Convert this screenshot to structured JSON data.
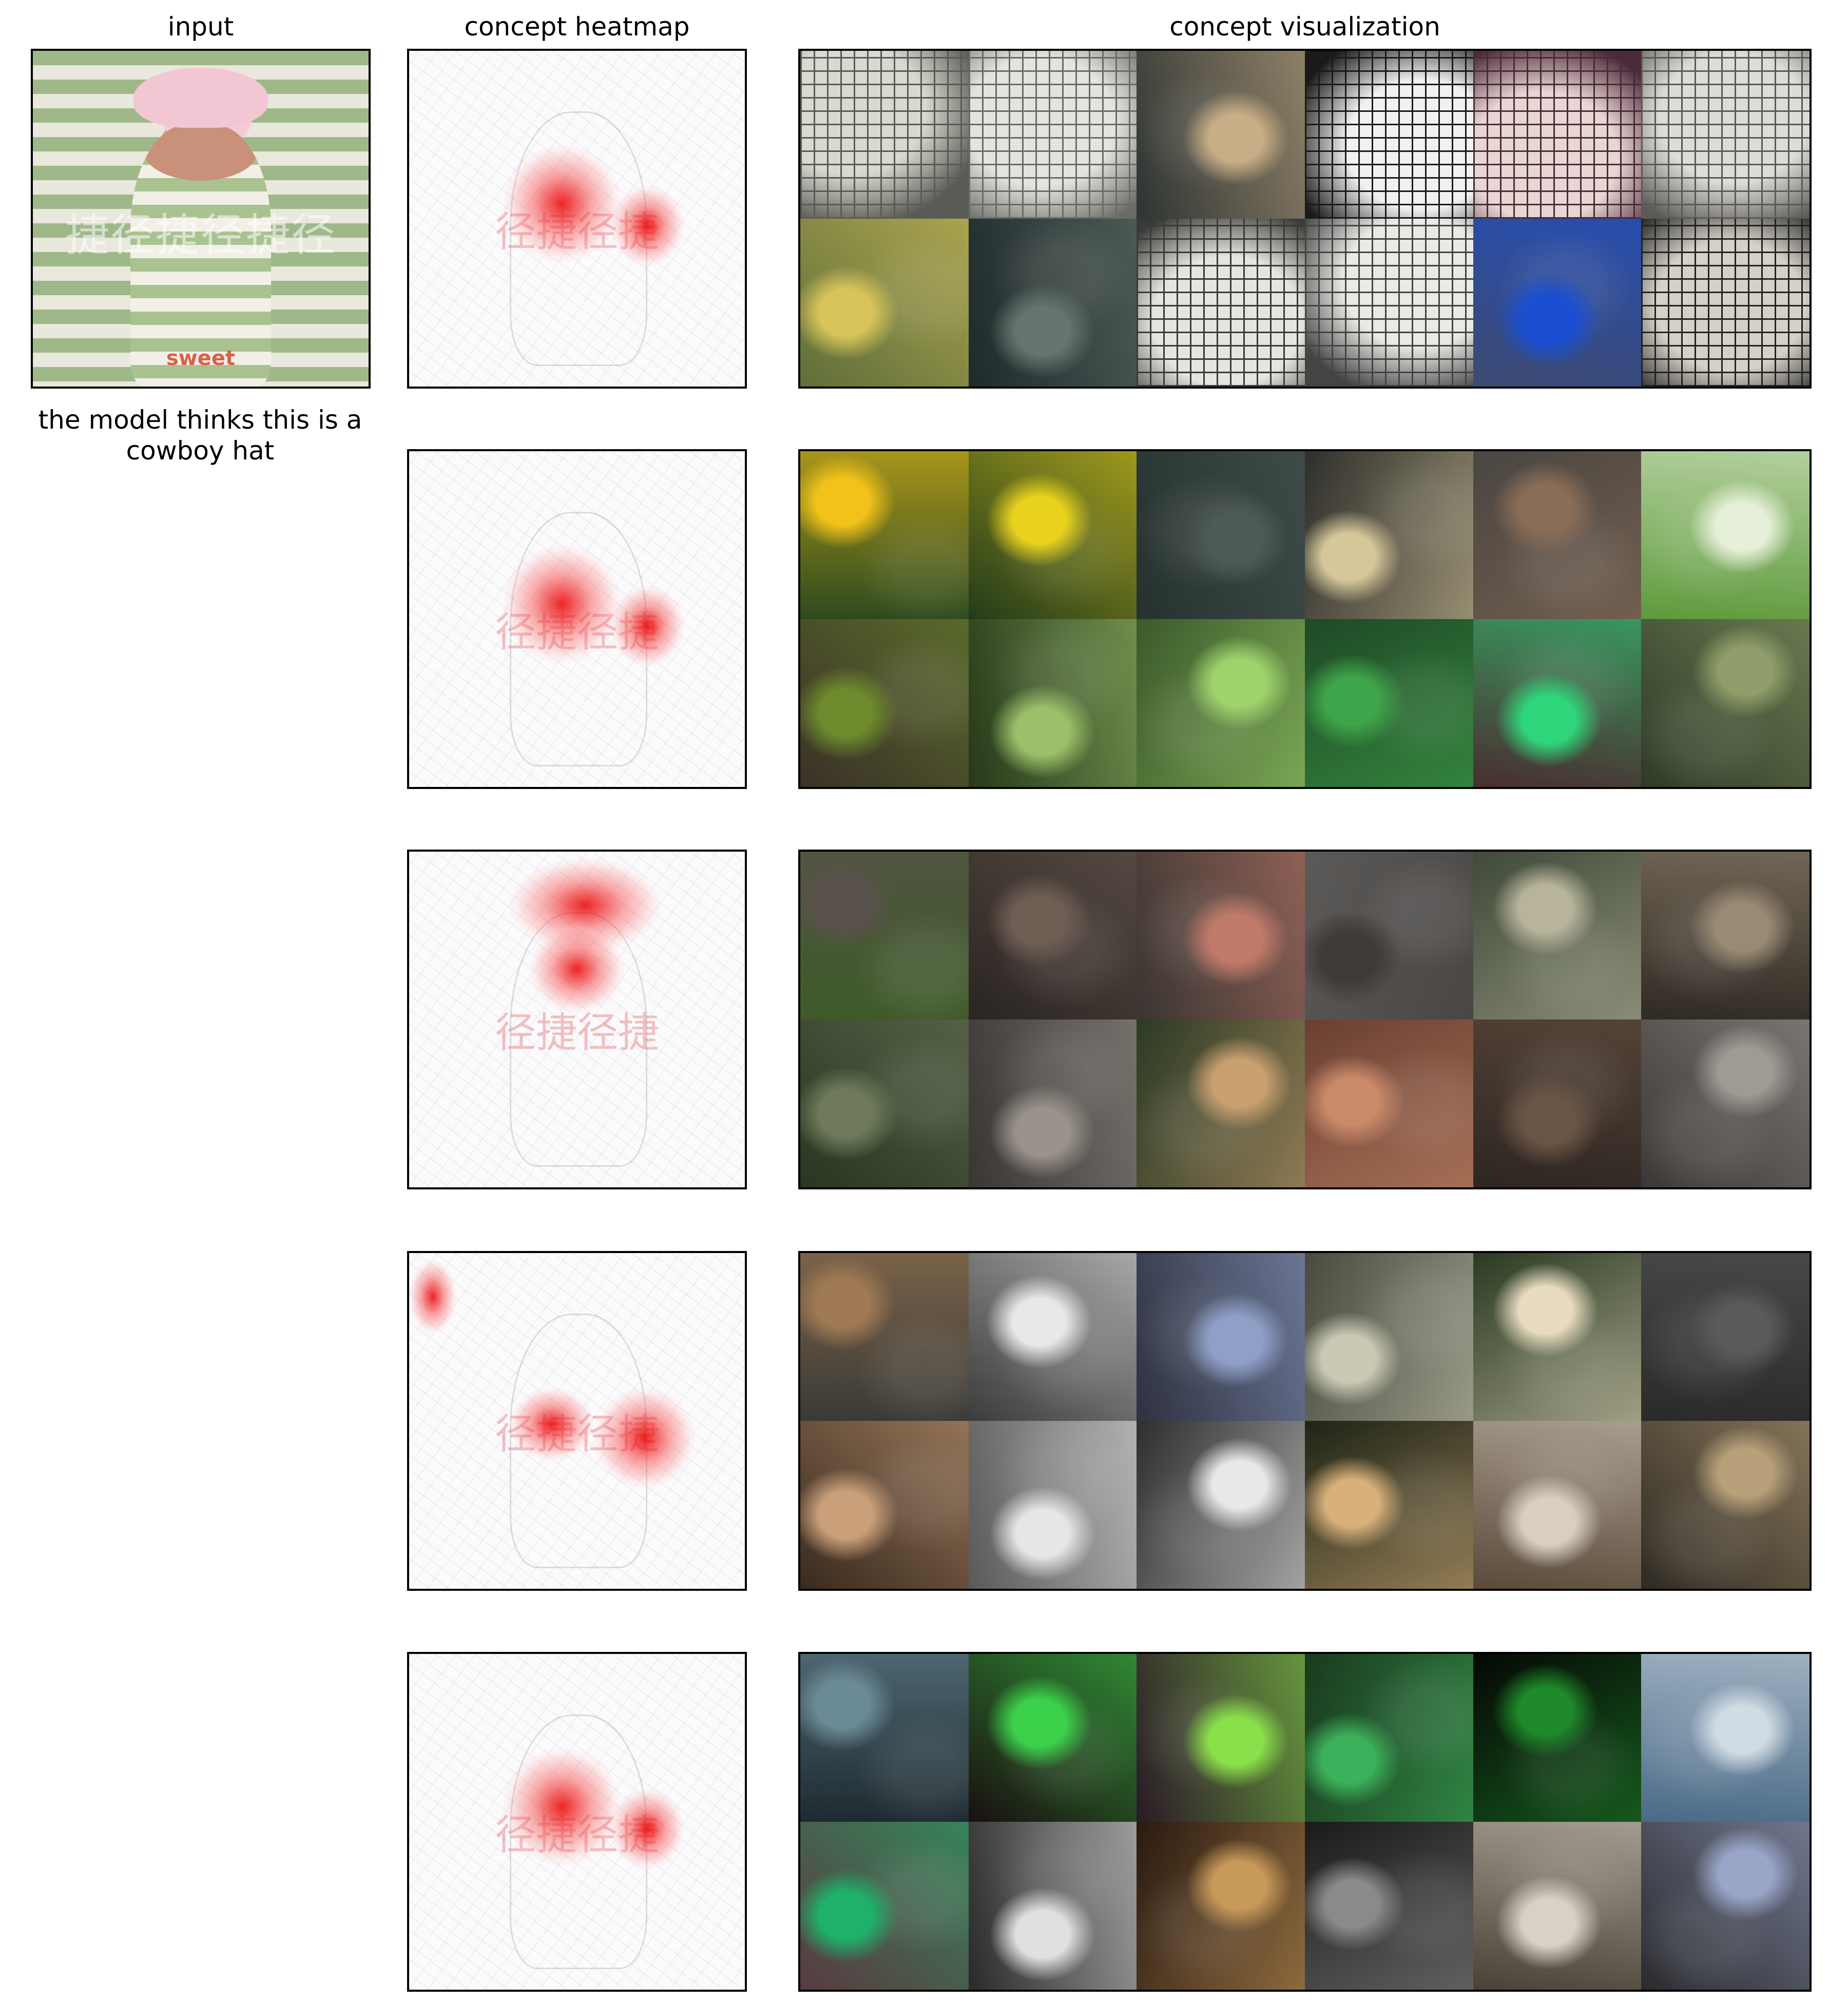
{
  "headers": {
    "input": "input",
    "heatmap": "concept heatmap",
    "visualization": "concept visualization"
  },
  "caption": "the model thinks this is a cowboy hat",
  "input_image": {
    "watermark": "捷径捷径捷径",
    "shirt_text": "sweet"
  },
  "heatmap_watermark": "径捷径捷",
  "concept_rows": [
    {
      "focus": "center",
      "tiles": [
        {
          "type": "crossword",
          "base": "#5b5b55",
          "hi": "#d9d9d2"
        },
        {
          "type": "crossword",
          "base": "#6a6a66",
          "hi": "#e4e4df"
        },
        {
          "type": "photo",
          "base": "#2e3433",
          "hi": "#c8ae86"
        },
        {
          "type": "crossword",
          "base": "#1a1a1a",
          "hi": "#f1f1f1"
        },
        {
          "type": "crossword",
          "base": "#4b2b3a",
          "hi": "#e8d6d2"
        },
        {
          "type": "crossword",
          "base": "#5c5a56",
          "hi": "#dedcd6"
        },
        {
          "type": "photo",
          "base": "#5f6e3a",
          "hi": "#d8c45a"
        },
        {
          "type": "photo",
          "base": "#1f2a2a",
          "hi": "#677570"
        },
        {
          "type": "crossword",
          "base": "#3a3a38",
          "hi": "#e6e4de"
        },
        {
          "type": "crossword",
          "base": "#444443",
          "hi": "#e9e9e6"
        },
        {
          "type": "photo",
          "base": "#3d4a72",
          "hi": "#1a4fd1"
        },
        {
          "type": "crossword",
          "base": "#232321",
          "hi": "#d5d1c8"
        }
      ]
    },
    {
      "focus": "center",
      "tiles": [
        {
          "type": "photo",
          "base": "#2d4a1d",
          "hi": "#f2c21a"
        },
        {
          "type": "photo",
          "base": "#233b1a",
          "hi": "#e8d21e"
        },
        {
          "type": "photo",
          "base": "#263230",
          "hi": "#4e5a56"
        },
        {
          "type": "photo",
          "base": "#2f2f2c",
          "hi": "#d5c79a"
        },
        {
          "type": "photo",
          "base": "#4a4642",
          "hi": "#8a6d57"
        },
        {
          "type": "photo",
          "base": "#5e9a3c",
          "hi": "#e6f0d8"
        },
        {
          "type": "photo",
          "base": "#3a3228",
          "hi": "#6d8a2c"
        },
        {
          "type": "photo",
          "base": "#27391a",
          "hi": "#9bc06a"
        },
        {
          "type": "photo",
          "base": "#3b5a2a",
          "hi": "#9fd36e"
        },
        {
          "type": "photo",
          "base": "#1f4a26",
          "hi": "#3fa54a"
        },
        {
          "type": "photo",
          "base": "#4a2e30",
          "hi": "#2fd57a"
        },
        {
          "type": "photo",
          "base": "#2e3a26",
          "hi": "#8f9e6a"
        }
      ]
    },
    {
      "focus": "hat",
      "tiles": [
        {
          "type": "photo",
          "base": "#3f5a2a",
          "hi": "#5a524c"
        },
        {
          "type": "photo",
          "base": "#2a2522",
          "hi": "#6e5e54"
        },
        {
          "type": "photo",
          "base": "#3a3532",
          "hi": "#c07a6a"
        },
        {
          "type": "photo",
          "base": "#5c5a58",
          "hi": "#3d3a38"
        },
        {
          "type": "photo",
          "base": "#3f4a3a",
          "hi": "#b7b49a"
        },
        {
          "type": "photo",
          "base": "#2f2a24",
          "hi": "#9a8a74"
        },
        {
          "type": "photo",
          "base": "#2a3522",
          "hi": "#6e7a5a"
        },
        {
          "type": "photo",
          "base": "#3a3634",
          "hi": "#9a938c"
        },
        {
          "type": "photo",
          "base": "#2c3a24",
          "hi": "#c9a070"
        },
        {
          "type": "photo",
          "base": "#6a4032",
          "hi": "#c98a6a"
        },
        {
          "type": "photo",
          "base": "#2e2622",
          "hi": "#6a5444"
        },
        {
          "type": "photo",
          "base": "#3a3836",
          "hi": "#a09a94"
        }
      ]
    },
    {
      "focus": "side",
      "tiles": [
        {
          "type": "photo",
          "base": "#3a3a36",
          "hi": "#a07a54"
        },
        {
          "type": "photo",
          "base": "#3c3c3a",
          "hi": "#e6e8ea"
        },
        {
          "type": "photo",
          "base": "#2e3140",
          "hi": "#8fa0c8"
        },
        {
          "type": "photo",
          "base": "#4a4a40",
          "hi": "#c9c9b4"
        },
        {
          "type": "photo",
          "base": "#2a3a22",
          "hi": "#e8dcc0"
        },
        {
          "type": "photo",
          "base": "#2a2a2a",
          "hi": "#5a5a58"
        },
        {
          "type": "photo",
          "base": "#3a2a1e",
          "hi": "#c9a07a"
        },
        {
          "type": "photo",
          "base": "#5a5a58",
          "hi": "#e6e6e6"
        },
        {
          "type": "photo",
          "base": "#2e2e2c",
          "hi": "#e8e8e8"
        },
        {
          "type": "photo",
          "base": "#1e2416",
          "hi": "#d8b07a"
        },
        {
          "type": "photo",
          "base": "#5a4a3a",
          "hi": "#d8cfc2"
        },
        {
          "type": "photo",
          "base": "#2e2a22",
          "hi": "#b8a07a"
        }
      ]
    },
    {
      "focus": "center",
      "tiles": [
        {
          "type": "photo",
          "base": "#1e2a30",
          "hi": "#6a8a96"
        },
        {
          "type": "photo",
          "base": "#1a1010",
          "hi": "#3cd14a"
        },
        {
          "type": "photo",
          "base": "#2a1a28",
          "hi": "#8ae04a"
        },
        {
          "type": "photo",
          "base": "#1a3a1e",
          "hi": "#3cb05a"
        },
        {
          "type": "photo",
          "base": "#050805",
          "hi": "#1e8a2a"
        },
        {
          "type": "photo",
          "base": "#4a6a86",
          "hi": "#d0dbe4"
        },
        {
          "type": "photo",
          "base": "#5a3a40",
          "hi": "#1fb06a"
        },
        {
          "type": "photo",
          "base": "#2a2a2a",
          "hi": "#e0e0e0"
        },
        {
          "type": "photo",
          "base": "#2a1a10",
          "hi": "#c89a5a"
        },
        {
          "type": "photo",
          "base": "#1a1a1a",
          "hi": "#8a8a8a"
        },
        {
          "type": "photo",
          "base": "#4a4236",
          "hi": "#d8d2c6"
        },
        {
          "type": "photo",
          "base": "#2a2a2e",
          "hi": "#9aa6c8"
        }
      ]
    }
  ]
}
